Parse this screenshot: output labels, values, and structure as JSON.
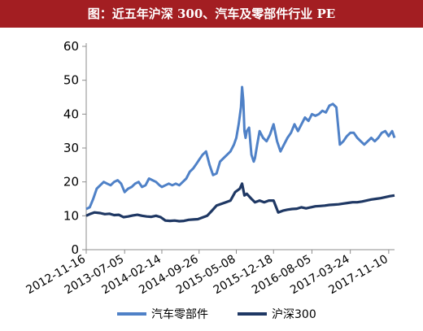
{
  "title": "图：近五年沪深 300、汽车及零部件行业 PE",
  "colors": {
    "title_bg": "#a31e22",
    "auto": "#4f81c7",
    "hs300": "#1f3864"
  },
  "chart_data": {
    "type": "line",
    "ylim": [
      0,
      60
    ],
    "yticks": [
      0,
      10,
      20,
      30,
      40,
      50,
      60
    ],
    "xlim": [
      "2012-11-16",
      "2017-12-15"
    ],
    "xticks": [
      "2012-11-16",
      "2013-07-05",
      "2014-02-14",
      "2014-09-26",
      "2015-05-08",
      "2015-12-18",
      "2016-08-05",
      "2017-03-24",
      "2017-11-10"
    ],
    "grid": false,
    "legend_position": "bottom",
    "series": [
      {
        "name": "汽车零部件",
        "color": "#4f81c7",
        "x": [
          "2012-11-16",
          "2012-12-07",
          "2012-12-28",
          "2013-01-18",
          "2013-02-08",
          "2013-03-01",
          "2013-03-22",
          "2013-04-12",
          "2013-05-03",
          "2013-05-24",
          "2013-06-14",
          "2013-07-05",
          "2013-07-26",
          "2013-08-16",
          "2013-09-06",
          "2013-09-27",
          "2013-10-18",
          "2013-11-08",
          "2013-11-29",
          "2013-12-20",
          "2014-01-10",
          "2014-01-31",
          "2014-02-14",
          "2014-03-07",
          "2014-03-28",
          "2014-04-18",
          "2014-05-09",
          "2014-05-30",
          "2014-06-20",
          "2014-07-11",
          "2014-08-01",
          "2014-08-22",
          "2014-09-12",
          "2014-09-26",
          "2014-10-17",
          "2014-11-07",
          "2014-11-28",
          "2014-12-19",
          "2015-01-09",
          "2015-01-30",
          "2015-02-20",
          "2015-03-13",
          "2015-04-03",
          "2015-04-24",
          "2015-05-08",
          "2015-05-22",
          "2015-06-05",
          "2015-06-12",
          "2015-06-19",
          "2015-06-26",
          "2015-07-03",
          "2015-07-10",
          "2015-07-24",
          "2015-08-07",
          "2015-08-21",
          "2015-08-28",
          "2015-09-11",
          "2015-09-25",
          "2015-10-16",
          "2015-11-06",
          "2015-11-27",
          "2015-12-18",
          "2016-01-08",
          "2016-01-29",
          "2016-02-19",
          "2016-03-11",
          "2016-04-01",
          "2016-04-22",
          "2016-05-13",
          "2016-06-03",
          "2016-06-24",
          "2016-07-15",
          "2016-08-05",
          "2016-08-26",
          "2016-09-16",
          "2016-10-07",
          "2016-10-28",
          "2016-11-18",
          "2016-12-09",
          "2016-12-30",
          "2017-01-20",
          "2017-02-10",
          "2017-03-03",
          "2017-03-24",
          "2017-04-14",
          "2017-05-05",
          "2017-05-26",
          "2017-06-16",
          "2017-07-07",
          "2017-07-28",
          "2017-08-18",
          "2017-09-08",
          "2017-09-29",
          "2017-10-20",
          "2017-11-10",
          "2017-12-01",
          "2017-12-15"
        ],
        "values": [
          12,
          12.5,
          15,
          18,
          19,
          20,
          19.5,
          19,
          20,
          20.5,
          19.5,
          17,
          18,
          18.5,
          19.5,
          20,
          18.5,
          19,
          21,
          20.5,
          20,
          19,
          18.5,
          19,
          19.5,
          19,
          19.5,
          19,
          20,
          21,
          23,
          24,
          25.5,
          26.5,
          28,
          29,
          25,
          22,
          22.5,
          26,
          27,
          28,
          29,
          31,
          33,
          37,
          42,
          48,
          44,
          35,
          33,
          35,
          36,
          28,
          26,
          27,
          31,
          35,
          33,
          32,
          34,
          37,
          32,
          29,
          31,
          33,
          34.5,
          37,
          35,
          37,
          39,
          38,
          40,
          39.5,
          40,
          41,
          40.5,
          42.5,
          43,
          42,
          31,
          32,
          33.5,
          34.5,
          34.5,
          33,
          32,
          31,
          32,
          33,
          32,
          33,
          34.5,
          35,
          33.5,
          35,
          33
        ]
      },
      {
        "name": "沪深300",
        "color": "#1f3864",
        "x": [
          "2012-11-16",
          "2012-12-07",
          "2013-01-04",
          "2013-02-08",
          "2013-03-08",
          "2013-04-05",
          "2013-05-03",
          "2013-05-31",
          "2013-06-28",
          "2013-07-26",
          "2013-08-23",
          "2013-09-20",
          "2013-10-18",
          "2013-11-15",
          "2013-12-13",
          "2014-01-10",
          "2014-02-07",
          "2014-03-07",
          "2014-04-04",
          "2014-05-02",
          "2014-05-30",
          "2014-06-27",
          "2014-07-25",
          "2014-08-22",
          "2014-09-19",
          "2014-10-17",
          "2014-11-14",
          "2014-12-12",
          "2015-01-09",
          "2015-02-06",
          "2015-03-06",
          "2015-04-03",
          "2015-05-01",
          "2015-05-29",
          "2015-06-12",
          "2015-06-26",
          "2015-07-10",
          "2015-08-07",
          "2015-08-28",
          "2015-09-25",
          "2015-10-23",
          "2015-11-20",
          "2015-12-18",
          "2016-01-15",
          "2016-02-12",
          "2016-03-11",
          "2016-04-08",
          "2016-05-06",
          "2016-06-03",
          "2016-07-01",
          "2016-07-29",
          "2016-08-26",
          "2016-09-23",
          "2016-10-21",
          "2016-11-18",
          "2016-12-16",
          "2017-01-13",
          "2017-02-10",
          "2017-03-10",
          "2017-04-07",
          "2017-05-05",
          "2017-06-02",
          "2017-06-30",
          "2017-07-28",
          "2017-08-25",
          "2017-09-22",
          "2017-10-20",
          "2017-11-17",
          "2017-12-15"
        ],
        "values": [
          10,
          10.5,
          11,
          10.8,
          10.5,
          10.6,
          10.2,
          10.3,
          9.6,
          9.8,
          10.1,
          10.3,
          10,
          9.8,
          9.7,
          10,
          9.6,
          8.6,
          8.5,
          8.6,
          8.4,
          8.5,
          8.8,
          8.9,
          9,
          9.5,
          10,
          11.5,
          13,
          13.5,
          14,
          14.5,
          17,
          18,
          19.5,
          16,
          16.5,
          15,
          14,
          14.5,
          14,
          14.5,
          14.5,
          11,
          11.5,
          11.8,
          12,
          12.1,
          12.5,
          12.2,
          12.5,
          12.8,
          12.9,
          13,
          13.2,
          13.3,
          13.4,
          13.6,
          13.8,
          14,
          14,
          14.2,
          14.5,
          14.8,
          15,
          15.2,
          15.5,
          15.8,
          16
        ]
      }
    ]
  }
}
